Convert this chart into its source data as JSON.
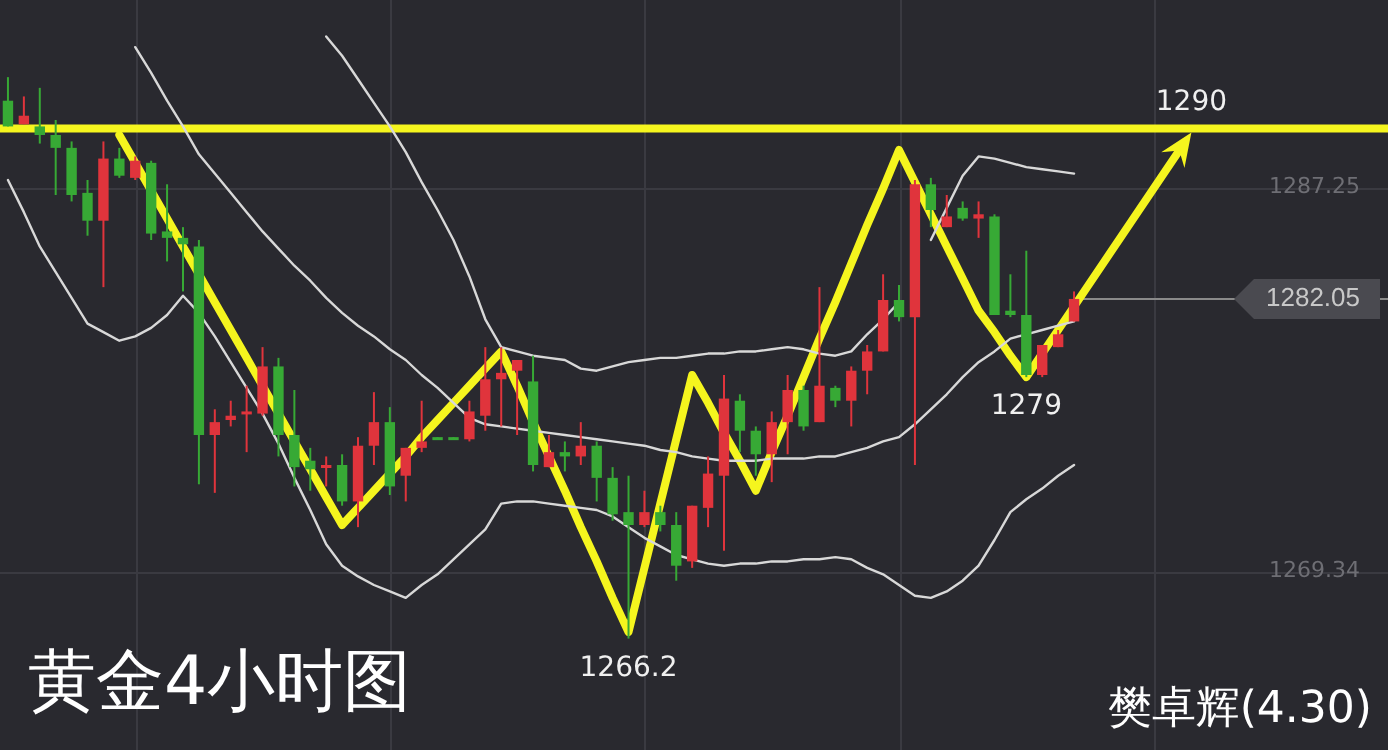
{
  "chart_data": {
    "type": "candlestick",
    "title": "黄金4小时图",
    "categories": [
      null,
      null,
      null,
      null,
      null,
      null,
      null,
      null,
      null,
      null,
      null,
      null,
      null,
      null,
      null,
      null,
      null,
      null,
      null,
      null,
      null,
      null,
      null,
      null,
      null,
      null,
      null,
      null,
      null,
      null,
      null,
      null,
      null,
      null,
      null,
      null,
      null,
      null,
      null,
      null,
      null,
      null,
      null,
      null,
      null,
      null,
      null,
      null,
      null,
      null,
      null,
      null,
      null,
      null,
      null,
      null,
      null,
      null,
      null,
      null,
      null,
      null,
      null,
      null,
      null,
      null,
      null,
      null
    ],
    "ylim": [
      1261,
      1296
    ],
    "yticks": [
      1269.34,
      1287.25
    ],
    "tick_labels": "y",
    "grid": true,
    "legend": false,
    "marker": "none",
    "series": [
      {
        "type": "line",
        "color": "#d8d8d8",
        "values": [
          null,
          null,
          null,
          null,
          null,
          null,
          null,
          null,
          1293.8,
          1292.6,
          1291.3,
          1290.1,
          1288.8,
          1287.9,
          1287.0,
          1286.1,
          1285.2,
          1284.4,
          1283.6,
          1282.9,
          1282.1,
          1281.4,
          1280.8,
          1280.3,
          1279.7,
          1279.2,
          1278.5,
          1277.9,
          1277.2,
          1276.5,
          1276.2,
          1276.1,
          1276.0,
          1275.9,
          1275.8,
          1275.7,
          1275.6,
          1275.5,
          1275.4,
          1275.3,
          1275.2,
          1275.0,
          1274.9,
          1274.7,
          1274.6,
          1274.5,
          1274.5,
          1274.5,
          1274.6,
          1274.6,
          1274.6,
          1274.7,
          1274.7,
          1274.9,
          1275.1,
          1275.4,
          1275.6,
          1276.2,
          1276.9,
          1277.6,
          1278.4,
          1279.1,
          1279.6,
          1280.2,
          1280.4,
          1280.6,
          1280.8,
          1281.0
        ]
      },
      {
        "type": "line",
        "color": "#d8d8d8",
        "values": [
          null,
          null,
          null,
          null,
          null,
          null,
          null,
          null,
          null,
          null,
          null,
          null,
          null,
          null,
          null,
          null,
          null,
          null,
          null,
          null,
          1294.3,
          1293.4,
          1292.3,
          1291.2,
          1290.1,
          1288.9,
          1287.5,
          1286.2,
          1284.8,
          1283.1,
          1281.1,
          1279.8,
          1279.6,
          1279.4,
          1279.3,
          1279.2,
          1278.8,
          1278.7,
          1278.9,
          1279.1,
          1279.2,
          1279.3,
          1279.3,
          1279.4,
          1279.5,
          1279.5,
          1279.6,
          1279.6,
          1279.7,
          1279.8,
          1279.7,
          1279.5,
          1279.4,
          1279.6,
          1280.4,
          1281.1,
          1281.9,
          null,
          1284.8,
          1286.3,
          1287.8,
          1288.7,
          1288.6,
          1288.4,
          1288.2,
          1288.1,
          1288.0,
          1287.9
        ]
      },
      {
        "type": "line",
        "color": "#d8d8d8",
        "values": [
          1287.6,
          1286.1,
          1284.5,
          1283.3,
          1282.1,
          1280.9,
          1280.5,
          1280.1,
          1280.3,
          1280.7,
          1281.3,
          1282.2,
          1281.4,
          1280.3,
          1279.1,
          1277.9,
          1276.7,
          1275.3,
          1273.7,
          1272.2,
          1270.6,
          1269.6,
          1269.1,
          1268.7,
          1268.4,
          1268.1,
          1268.7,
          1269.2,
          1269.9,
          1270.6,
          1271.3,
          1272.5,
          1272.6,
          1272.6,
          1272.5,
          1272.4,
          1272.3,
          1272.2,
          1271.9,
          1271.4,
          1270.9,
          1270.5,
          1270.1,
          1269.9,
          1269.7,
          1269.6,
          1269.7,
          1269.7,
          1269.8,
          1269.8,
          1269.9,
          1269.9,
          1270.0,
          1269.9,
          1269.5,
          1269.2,
          1268.7,
          1268.2,
          1268.1,
          1268.4,
          1268.9,
          1269.6,
          1270.8,
          1272.1,
          1272.7,
          1273.2,
          1273.8,
          1274.3
        ]
      },
      {
        "ohlc": [
          [
            1291.3,
            1292.4,
            1290.1,
            1290.1
          ],
          [
            1290.2,
            1291.5,
            1290.2,
            1290.6
          ],
          [
            1290.1,
            1291.9,
            1289.3,
            1289.7
          ],
          [
            1289.7,
            1290.4,
            1286.9,
            1289.1
          ],
          [
            1289.1,
            1289.4,
            1286.6,
            1286.9
          ],
          [
            1287.0,
            1287.6,
            1285.0,
            1285.7
          ],
          [
            1285.7,
            1289.4,
            1282.6,
            1288.6
          ],
          [
            1288.6,
            1289.1,
            1287.7,
            1287.8
          ],
          [
            1287.7,
            1288.7,
            1287.6,
            1288.5
          ],
          [
            1288.4,
            1288.5,
            1284.8,
            1285.1
          ],
          [
            1285.2,
            1287.4,
            1283.8,
            1284.9
          ],
          [
            1284.9,
            1285.4,
            1282.4,
            1284.6
          ],
          [
            1284.5,
            1284.8,
            1273.4,
            1275.7
          ],
          [
            1275.7,
            1276.9,
            1273.0,
            1276.3
          ],
          [
            1276.4,
            1277.3,
            1276.1,
            1276.6
          ],
          [
            1276.7,
            1278.0,
            1274.9,
            1276.8
          ],
          [
            1276.7,
            1279.8,
            1276.6,
            1278.9
          ],
          [
            1278.9,
            1279.3,
            1274.7,
            1275.7
          ],
          [
            1275.7,
            1277.8,
            1273.3,
            1274.2
          ],
          [
            1274.5,
            1275.1,
            1273.1,
            1274.1
          ],
          [
            1274.2,
            1274.7,
            1273.3,
            1274.3
          ],
          [
            1274.3,
            1274.8,
            1272.4,
            1272.6
          ],
          [
            1272.6,
            1275.6,
            1271.4,
            1275.2
          ],
          [
            1275.2,
            1277.7,
            1274.3,
            1276.3
          ],
          [
            1276.3,
            1277.0,
            1272.9,
            1273.3
          ],
          [
            1273.8,
            1275.1,
            1272.6,
            1275.1
          ],
          [
            1275.1,
            1277.3,
            1274.9,
            1275.4
          ],
          [
            1275.6,
            1275.6,
            1275.5,
            1275.5
          ],
          [
            1275.6,
            1275.6,
            1275.5,
            1275.5
          ],
          [
            1275.5,
            1277.3,
            1275.4,
            1276.8
          ],
          [
            1276.6,
            1279.8,
            1275.9,
            1278.3
          ],
          [
            1278.3,
            1279.8,
            1276.1,
            1278.6
          ],
          [
            1278.7,
            1279.2,
            1275.7,
            1279.2
          ],
          [
            1278.2,
            1279.4,
            1274.0,
            1274.3
          ],
          [
            1274.2,
            1275.7,
            1274.2,
            1274.9
          ],
          [
            1274.9,
            1275.4,
            1274.0,
            1274.7
          ],
          [
            1274.7,
            1276.3,
            1274.3,
            1275.2
          ],
          [
            1275.2,
            1275.4,
            1272.6,
            1273.7
          ],
          [
            1273.7,
            1274.2,
            1271.7,
            1272.0
          ],
          [
            1272.1,
            1273.8,
            1266.2,
            1271.5
          ],
          [
            1271.5,
            1273.1,
            1271.4,
            1272.1
          ],
          [
            1272.1,
            1272.4,
            1271.2,
            1271.5
          ],
          [
            1271.5,
            1272.1,
            1268.9,
            1269.6
          ],
          [
            1269.8,
            1272.4,
            1269.5,
            1272.4
          ],
          [
            1272.3,
            1274.7,
            1271.4,
            1273.9
          ],
          [
            1273.8,
            1278.5,
            1270.3,
            1277.4
          ],
          [
            1277.3,
            1277.6,
            1274.9,
            1275.9
          ],
          [
            1275.9,
            1276.1,
            1273.8,
            1274.8
          ],
          [
            1274.8,
            1276.8,
            1273.5,
            1276.3
          ],
          [
            1276.3,
            1278.5,
            1274.8,
            1277.8
          ],
          [
            1277.8,
            1278.0,
            1275.9,
            1276.1
          ],
          [
            1276.3,
            1282.6,
            1276.3,
            1278.0
          ],
          [
            1277.9,
            1278.0,
            1277.0,
            1277.3
          ],
          [
            1277.3,
            1278.9,
            1276.1,
            1278.7
          ],
          [
            1278.7,
            1279.9,
            1277.6,
            1279.6
          ],
          [
            1279.6,
            1283.2,
            1279.6,
            1282.0
          ],
          [
            1282.0,
            1282.7,
            1281.0,
            1281.2
          ],
          [
            1281.2,
            1287.6,
            1274.3,
            1287.4
          ],
          [
            1287.4,
            1287.7,
            1285.4,
            1286.2
          ],
          [
            1285.4,
            1286.9,
            1285.4,
            1285.9
          ],
          [
            1286.3,
            1286.6,
            1285.7,
            1285.8
          ],
          [
            1285.8,
            1286.6,
            1284.9,
            1286.0
          ],
          [
            1285.9,
            1286.0,
            1281.3,
            1281.3
          ],
          [
            1281.5,
            1283.2,
            1281.2,
            1281.3
          ],
          [
            1281.3,
            1284.3,
            1278.4,
            1278.5
          ],
          [
            1278.5,
            1279.9,
            1278.4,
            1279.9
          ],
          [
            1279.8,
            1280.6,
            1279.8,
            1280.4
          ],
          [
            1281.0,
            1282.4,
            1281.0,
            1282.05
          ]
        ],
        "colors": [
          "#37a935",
          "#e0343c",
          "#37a935",
          "#37a935",
          "#37a935",
          "#37a935",
          "#e0343c",
          "#37a935",
          "#e0343c",
          "#37a935",
          "#37a935",
          "#37a935",
          "#37a935",
          "#e0343c",
          "#e0343c",
          "#e0343c",
          "#e0343c",
          "#37a935",
          "#37a935",
          "#37a935",
          "#e0343c",
          "#37a935",
          "#e0343c",
          "#e0343c",
          "#37a935",
          "#e0343c",
          "#e0343c",
          "#37a935",
          "#37a935",
          "#e0343c",
          "#e0343c",
          "#e0343c",
          "#e0343c",
          "#37a935",
          "#e0343c",
          "#37a935",
          "#e0343c",
          "#37a935",
          "#37a935",
          "#37a935",
          "#e0343c",
          "#37a935",
          "#37a935",
          "#e0343c",
          "#e0343c",
          "#e0343c",
          "#37a935",
          "#37a935",
          "#e0343c",
          "#e0343c",
          "#37a935",
          "#e0343c",
          "#37a935",
          "#e0343c",
          "#e0343c",
          "#e0343c",
          "#37a935",
          "#e0343c",
          "#37a935",
          "#e0343c",
          "#37a935",
          "#e0343c",
          "#37a935",
          "#37a935",
          "#37a935",
          "#e0343c",
          "#e0343c",
          "#e0343c"
        ]
      },
      {
        "type": "line",
        "color": "#f5f51e",
        "values": [
          null,
          null,
          null,
          null,
          null,
          null,
          null,
          1289.7,
          1288.4,
          1287.1,
          1285.8,
          1284.5,
          1283.2,
          1281.9,
          1280.6,
          1279.3,
          1278.0,
          1276.7,
          1275.4,
          1274.1,
          1272.8,
          1271.5,
          1272.3,
          1273.1,
          1273.9,
          1274.7,
          1275.6,
          1276.4,
          1277.2,
          1278.0,
          1278.8,
          1279.6,
          1278.0,
          1276.3,
          1274.7,
          1273.1,
          1271.4,
          1269.8,
          1268.1,
          1266.5,
          1269.5,
          1272.5,
          1275.5,
          1278.5,
          1277.2,
          1275.8,
          1274.5,
          1273.1,
          1274.9,
          1276.6,
          1278.4,
          1280.2,
          1281.9,
          1283.7,
          1285.5,
          1287.2,
          1289.0,
          1287.5,
          1286.0,
          1284.5,
          1283.0,
          1281.5,
          1280.5,
          1279.4,
          1278.4,
          1279.5,
          1280.6,
          1281.7
        ]
      }
    ],
    "ref_lines": [
      {
        "axis": "y",
        "value": 1290,
        "color": "#f5f51e"
      },
      {
        "axis": "y",
        "value": 1282.05,
        "label": "1282.05",
        "color": "#8a8a8a"
      }
    ],
    "annotations": [
      {
        "text": "1290",
        "y": 1290
      },
      {
        "text": "1266.2",
        "y": 1266.2
      },
      {
        "text": "1279",
        "y": 1279
      },
      "樊卓辉(4.30)"
    ]
  }
}
